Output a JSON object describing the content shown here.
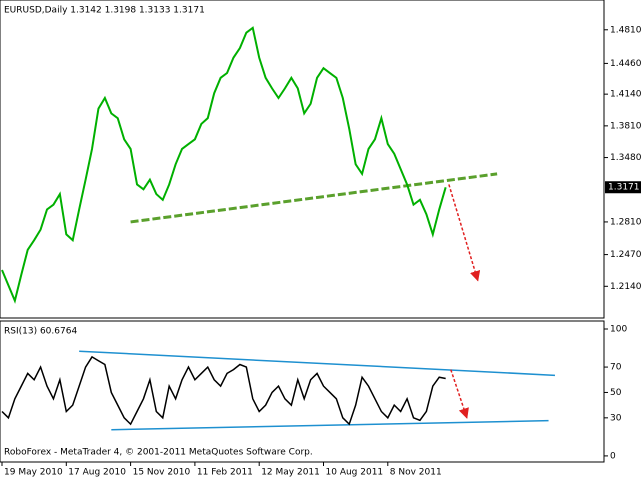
{
  "chart_data": [
    {
      "type": "line",
      "title": "EURUSD,Daily  1.3142 1.3198 1.3133 1.3171",
      "categories": [
        "19 May 2010",
        null,
        null,
        null,
        null,
        null,
        null,
        null,
        null,
        null,
        "17 Aug 2010",
        null,
        null,
        null,
        null,
        null,
        null,
        null,
        null,
        null,
        "15 Nov 2010",
        null,
        null,
        null,
        null,
        null,
        null,
        null,
        null,
        null,
        "11 Feb 2011",
        null,
        null,
        null,
        null,
        null,
        null,
        null,
        null,
        null,
        "12 May 2011",
        null,
        null,
        null,
        null,
        null,
        null,
        null,
        null,
        null,
        "10 Aug 2011",
        null,
        null,
        null,
        null,
        null,
        null,
        null,
        null,
        null,
        "8 Nov 2011",
        null,
        null,
        null,
        null,
        null,
        null,
        null,
        null,
        null
      ],
      "series": [
        {
          "name": "EURUSD",
          "color": "#00b000",
          "values": [
            1.231,
            1.215,
            1.199,
            1.226,
            1.252,
            1.262,
            1.273,
            1.294,
            1.299,
            1.31,
            1.268,
            1.262,
            1.294,
            1.325,
            1.357,
            1.399,
            1.41,
            1.394,
            1.389,
            1.367,
            1.357,
            1.32,
            1.315,
            1.325,
            1.31,
            1.304,
            1.32,
            1.341,
            1.357,
            1.362,
            1.367,
            1.383,
            1.389,
            1.415,
            1.431,
            1.436,
            1.452,
            1.462,
            1.478,
            1.483,
            1.452,
            1.431,
            1.42,
            1.41,
            1.42,
            1.431,
            1.42,
            1.394,
            1.404,
            1.431,
            1.441,
            1.436,
            1.431,
            1.41,
            1.378,
            1.341,
            1.331,
            1.357,
            1.367,
            1.389,
            1.362,
            1.352,
            1.336,
            1.32,
            1.299,
            1.304,
            1.289,
            1.268,
            1.294,
            1.317
          ]
        }
      ],
      "ylim": [
        1.181,
        1.512
      ],
      "yticks": [
        {
          "value": 1.481,
          "label": "1.4810"
        },
        {
          "value": 1.446,
          "label": "1.4460"
        },
        {
          "value": 1.414,
          "label": "1.4140"
        },
        {
          "value": 1.381,
          "label": "1.3810"
        },
        {
          "value": 1.348,
          "label": "1.3480"
        },
        {
          "value": 1.281,
          "label": "1.2810"
        },
        {
          "value": 1.247,
          "label": "1.2470"
        },
        {
          "value": 1.214,
          "label": "1.2140"
        }
      ],
      "last_price": {
        "value": 1.3171,
        "label": "1.3171"
      },
      "lines": [
        {
          "x": [
            20,
            77
          ],
          "y": [
            1.281,
            1.331
          ],
          "color": "#5aa02c",
          "dashed": true,
          "arrow": false
        },
        {
          "x": [
            69.5,
            74
          ],
          "y": [
            1.32,
            1.22
          ],
          "color": "#e02020",
          "dashed": true,
          "arrow": true
        }
      ]
    },
    {
      "type": "line",
      "title": "RSI(13) 60.6764",
      "annotation": "RoboForex - MetaTrader 4, © 2001-2011 MetaQuotes Software Corp.",
      "series": [
        {
          "name": "RSI(13)",
          "color": "#000000",
          "values": [
            35,
            30,
            45,
            55,
            65,
            60,
            70,
            55,
            45,
            60,
            35,
            40,
            55,
            70,
            78,
            75,
            72,
            50,
            40,
            30,
            25,
            35,
            45,
            60,
            35,
            30,
            55,
            45,
            60,
            70,
            60,
            65,
            70,
            60,
            55,
            65,
            68,
            72,
            70,
            45,
            35,
            40,
            50,
            55,
            45,
            40,
            60,
            45,
            60,
            65,
            55,
            50,
            45,
            30,
            25,
            40,
            62,
            55,
            45,
            35,
            30,
            40,
            35,
            45,
            30,
            28,
            35,
            55,
            62,
            61
          ]
        }
      ],
      "ylim": [
        -4.8,
        106.3
      ],
      "yticks": [
        100,
        70,
        50,
        30,
        0
      ],
      "lines": [
        {
          "x": [
            12,
            86
          ],
          "y": [
            82.5,
            63.5
          ],
          "color": "#1e90d0",
          "dashed": false,
          "arrow": false
        },
        {
          "x": [
            17,
            85
          ],
          "y": [
            20.6,
            27.8
          ],
          "color": "#1e90d0",
          "dashed": false,
          "arrow": false
        },
        {
          "x": [
            69.8,
            72.3
          ],
          "y": [
            68,
            30
          ],
          "color": "#e02020",
          "dashed": true,
          "arrow": true
        }
      ]
    }
  ]
}
